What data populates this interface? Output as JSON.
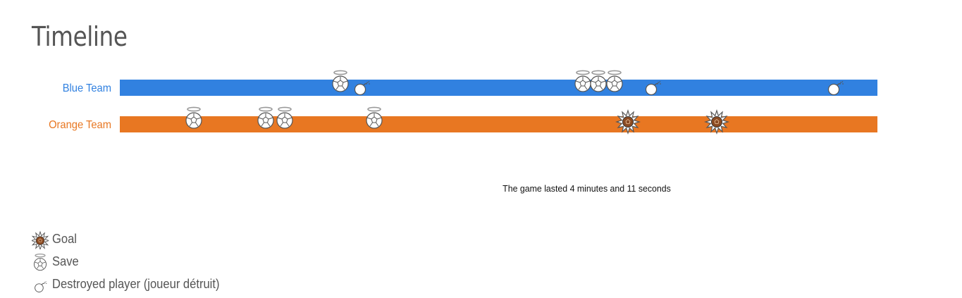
{
  "page": {
    "title": "Timeline"
  },
  "teams": [
    {
      "name": "Blue Team",
      "color": "#3181e0",
      "events": [
        {
          "type": "save",
          "t": 0.291
        },
        {
          "type": "destroyed",
          "t": 0.319
        },
        {
          "type": "save",
          "t": 0.611
        },
        {
          "type": "save",
          "t": 0.632
        },
        {
          "type": "save",
          "t": 0.653
        },
        {
          "type": "destroyed",
          "t": 0.703
        },
        {
          "type": "destroyed",
          "t": 0.944
        }
      ]
    },
    {
      "name": "Orange Team",
      "color": "#e87722",
      "events": [
        {
          "type": "save",
          "t": 0.098
        },
        {
          "type": "save",
          "t": 0.193
        },
        {
          "type": "save",
          "t": 0.218
        },
        {
          "type": "save",
          "t": 0.336
        },
        {
          "type": "goal",
          "t": 0.671
        },
        {
          "type": "goal",
          "t": 0.788
        }
      ]
    }
  ],
  "summary": "The game lasted 4 minutes and 11 seconds",
  "legend": [
    {
      "type": "goal",
      "label": "Goal",
      "icon": "goal-icon"
    },
    {
      "type": "save",
      "label": "Save",
      "icon": "save-icon"
    },
    {
      "type": "destroyed",
      "label": "Destroyed player (joueur détruit)",
      "icon": "bomb-icon"
    }
  ]
}
